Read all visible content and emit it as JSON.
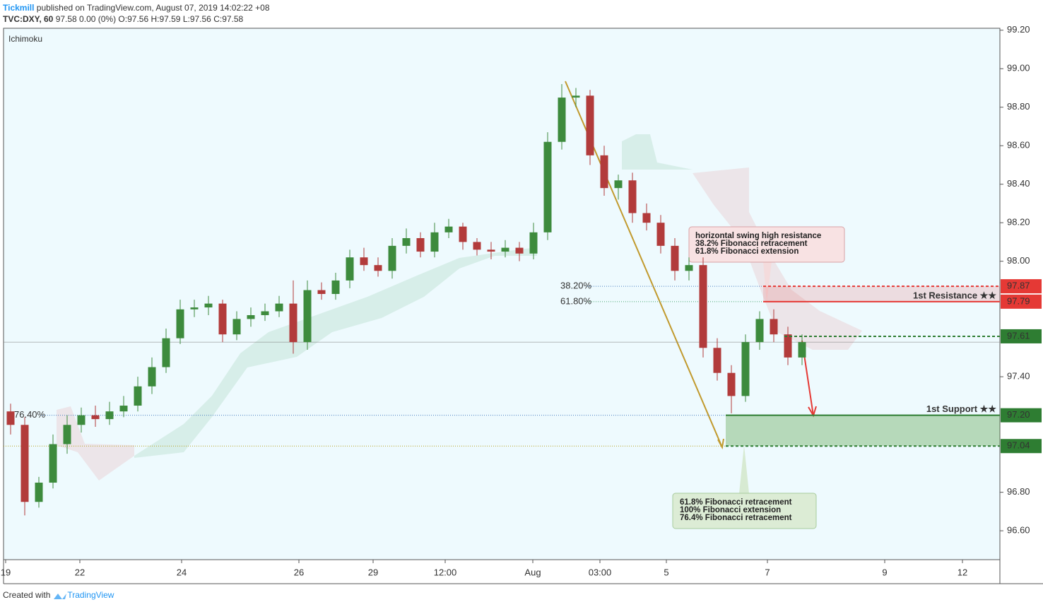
{
  "header": {
    "author": "Tickmill",
    "published": " published on TradingView.com, August 07, 2019 14:02:22 +08",
    "symbol": "TVC:DXY, 60",
    "quote": " 97.58 0.00 (0%) ",
    "ohlc": "O:97.56 H:97.59 L:97.56 C:97.58"
  },
  "indicator": "Ichimoku",
  "footer": {
    "created": "Created with",
    "brand": "TradingView"
  },
  "chart_data": {
    "type": "candlestick",
    "up_color": "#3d8b3d",
    "down_color": "#b23b3b",
    "candles": {
      "open": [
        97.22,
        97.15,
        96.75,
        96.85,
        97.05,
        97.15,
        97.2,
        97.18,
        97.22,
        97.25,
        97.35,
        97.45,
        97.6,
        97.75,
        97.76,
        97.78,
        97.62,
        97.7,
        97.72,
        97.74,
        97.78,
        97.58,
        97.85,
        97.83,
        97.9,
        98.02,
        97.98,
        97.95,
        98.08,
        98.12,
        98.05,
        98.15,
        98.18,
        98.1,
        98.06,
        98.05,
        98.07,
        98.04,
        98.15,
        98.62,
        98.85,
        98.86,
        98.55,
        98.38,
        98.42,
        98.25,
        98.2,
        98.08,
        97.95,
        97.98,
        97.55,
        97.42,
        97.3,
        97.58,
        97.7,
        97.62,
        97.5
      ],
      "high": [
        97.26,
        97.19,
        96.88,
        97.1,
        97.2,
        97.24,
        97.25,
        97.27,
        97.3,
        97.4,
        97.5,
        97.65,
        97.8,
        97.8,
        97.82,
        97.8,
        97.74,
        97.76,
        97.78,
        97.82,
        97.9,
        97.9,
        97.89,
        97.94,
        98.06,
        98.07,
        98.02,
        98.12,
        98.17,
        98.15,
        98.2,
        98.22,
        98.2,
        98.12,
        98.1,
        98.11,
        98.1,
        98.2,
        98.67,
        98.92,
        98.9,
        98.89,
        98.6,
        98.45,
        98.46,
        98.3,
        98.24,
        98.12,
        98.02,
        98.02,
        97.6,
        97.46,
        97.62,
        97.74,
        97.75,
        97.66,
        97.62
      ],
      "low": [
        97.1,
        96.68,
        96.72,
        96.82,
        97.0,
        97.11,
        97.14,
        97.15,
        97.19,
        97.22,
        97.31,
        97.42,
        97.57,
        97.71,
        97.72,
        97.58,
        97.59,
        97.66,
        97.69,
        97.71,
        97.52,
        97.54,
        97.8,
        97.8,
        97.86,
        97.95,
        97.92,
        97.91,
        98.04,
        98.02,
        98.02,
        98.12,
        98.06,
        98.03,
        98.01,
        98.02,
        98.0,
        98.01,
        98.11,
        98.58,
        98.8,
        98.5,
        98.34,
        98.32,
        98.2,
        98.16,
        98.04,
        97.9,
        97.9,
        97.5,
        97.38,
        97.21,
        97.27,
        97.54,
        97.58,
        97.46,
        97.46
      ],
      "close": [
        97.15,
        96.75,
        96.85,
        97.05,
        97.15,
        97.2,
        97.18,
        97.22,
        97.25,
        97.35,
        97.45,
        97.6,
        97.75,
        97.76,
        97.78,
        97.62,
        97.7,
        97.72,
        97.74,
        97.78,
        97.58,
        97.85,
        97.83,
        97.9,
        98.02,
        97.98,
        97.95,
        98.08,
        98.12,
        98.05,
        98.15,
        98.18,
        98.1,
        98.06,
        98.05,
        98.07,
        98.04,
        98.15,
        98.62,
        98.85,
        98.86,
        98.55,
        98.38,
        98.42,
        98.25,
        98.2,
        98.08,
        97.95,
        97.98,
        97.55,
        97.42,
        97.3,
        97.58,
        97.7,
        97.62,
        97.5,
        97.58
      ]
    },
    "xlim": [
      0,
      70.5
    ],
    "xticks": [
      {
        "value": 0.15,
        "label": "19"
      },
      {
        "value": 5.4,
        "label": "22"
      },
      {
        "value": 12.6,
        "label": "24"
      },
      {
        "value": 20.9,
        "label": "26"
      },
      {
        "value": 26.15,
        "label": "29"
      },
      {
        "value": 31.25,
        "label": "12:00"
      },
      {
        "value": 37.45,
        "label": "Aug"
      },
      {
        "value": 42.2,
        "label": "03:00"
      },
      {
        "value": 46.9,
        "label": "5"
      },
      {
        "value": 54.05,
        "label": "7"
      },
      {
        "value": 62.35,
        "label": "9"
      },
      {
        "value": 67.85,
        "label": "12"
      }
    ],
    "ylim": [
      96.45,
      99.21
    ],
    "yticks": [
      {
        "value": 99.2,
        "label": "99.20"
      },
      {
        "value": 99,
        "label": "99.00"
      },
      {
        "value": 98.8,
        "label": "98.80"
      },
      {
        "value": 98.6,
        "label": "98.60"
      },
      {
        "value": 98.4,
        "label": "98.40"
      },
      {
        "value": 98.2,
        "label": "98.20"
      },
      {
        "value": 98,
        "label": "98.00"
      },
      {
        "value": 97.4,
        "label": "97.40"
      },
      {
        "value": 96.8,
        "label": "96.80"
      },
      {
        "value": 96.6,
        "label": "96.60"
      }
    ],
    "price_line": 97.58,
    "levels": [
      {
        "value": 97.87,
        "color": "#e53935"
      },
      {
        "value": 97.79,
        "color": "#e53935"
      },
      {
        "value": 97.61,
        "color": "#2e7d32"
      },
      {
        "value": 97.2,
        "label": "97.20",
        "color": "#2e7d32"
      },
      {
        "value": 97.04,
        "color": "#2e7d32"
      }
    ],
    "fib_labels": [
      "38.20%",
      "61.80%",
      "76.40%"
    ],
    "resistance_label": "1st Resistance ★★",
    "support_label": "1st Support ★★",
    "resistance_note": [
      "horizontal swing high resistance",
      "38.2% Fibonacci retracement",
      "61.8% Fibonacci extension"
    ],
    "support_note": [
      "61.8% Fibonacci retracement",
      "100% Fibonacci extension",
      "76.4% Fibonacci retracement"
    ]
  }
}
